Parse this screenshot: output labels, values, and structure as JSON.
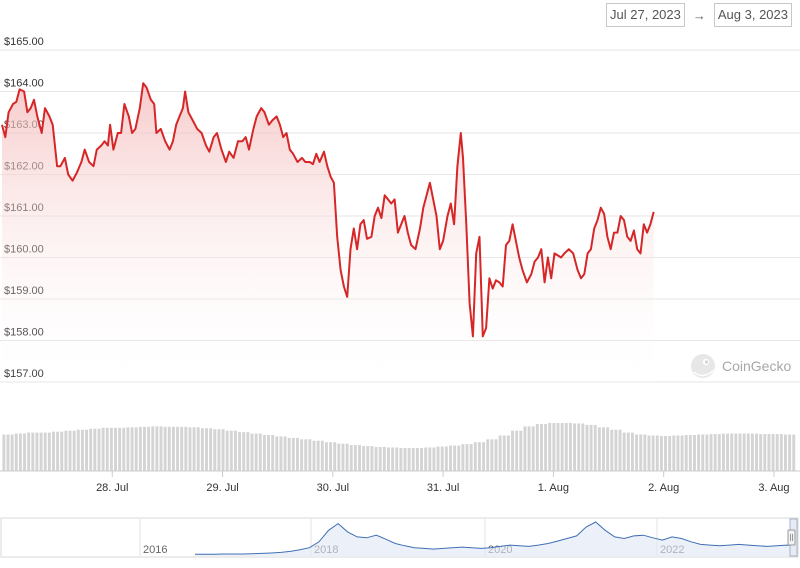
{
  "range": {
    "from": "Jul 27, 2023",
    "to": "Aug 3, 2023",
    "separator": "→"
  },
  "watermark": {
    "text": "CoinGecko",
    "icon": "gecko-logo-icon"
  },
  "colors": {
    "line": "#d62728",
    "fill": "#f6c6c6",
    "volume": "#d4d4d4",
    "nav_line": "#3f6fb5",
    "grid": "#e6e6e6"
  },
  "chart_data": {
    "type": "line",
    "title": "",
    "xlabel": "",
    "ylabel": "",
    "ylim": [
      157,
      165
    ],
    "y_ticks": [
      "$157.00",
      "$158.00",
      "$159.00",
      "$160.00",
      "$161.00",
      "$162.00",
      "$163.00",
      "$164.00",
      "$165.00"
    ],
    "x_ticks": [
      "28. Jul",
      "29. Jul",
      "30. Jul",
      "31. Jul",
      "1. Aug",
      "2. Aug",
      "3. Aug"
    ],
    "x_range_days": [
      0,
      7.2
    ],
    "grid": true,
    "series": [
      {
        "values": [
          [
            0.0,
            163.2
          ],
          [
            0.03,
            162.9
          ],
          [
            0.06,
            163.5
          ],
          [
            0.1,
            163.7
          ],
          [
            0.13,
            163.75
          ],
          [
            0.16,
            164.05
          ],
          [
            0.2,
            164.0
          ],
          [
            0.23,
            163.5
          ],
          [
            0.26,
            163.6
          ],
          [
            0.29,
            163.8
          ],
          [
            0.32,
            163.4
          ],
          [
            0.36,
            163.0
          ],
          [
            0.39,
            163.6
          ],
          [
            0.43,
            163.4
          ],
          [
            0.46,
            163.2
          ],
          [
            0.5,
            162.2
          ],
          [
            0.53,
            162.2
          ],
          [
            0.57,
            162.4
          ],
          [
            0.6,
            162.0
          ],
          [
            0.64,
            161.85
          ],
          [
            0.68,
            162.05
          ],
          [
            0.72,
            162.3
          ],
          [
            0.75,
            162.6
          ],
          [
            0.79,
            162.3
          ],
          [
            0.83,
            162.2
          ],
          [
            0.86,
            162.6
          ],
          [
            0.9,
            162.7
          ],
          [
            0.93,
            162.8
          ],
          [
            0.96,
            162.7
          ],
          [
            0.98,
            163.2
          ],
          [
            1.01,
            162.6
          ],
          [
            1.05,
            163.0
          ],
          [
            1.08,
            163.0
          ],
          [
            1.11,
            163.7
          ],
          [
            1.15,
            163.4
          ],
          [
            1.18,
            163.0
          ],
          [
            1.21,
            163.1
          ],
          [
            1.25,
            163.6
          ],
          [
            1.28,
            164.2
          ],
          [
            1.31,
            164.1
          ],
          [
            1.35,
            163.8
          ],
          [
            1.38,
            163.7
          ],
          [
            1.4,
            163.0
          ],
          [
            1.44,
            163.1
          ],
          [
            1.48,
            162.8
          ],
          [
            1.52,
            162.6
          ],
          [
            1.55,
            162.8
          ],
          [
            1.58,
            163.2
          ],
          [
            1.61,
            163.4
          ],
          [
            1.64,
            163.6
          ],
          [
            1.66,
            164.0
          ],
          [
            1.69,
            163.5
          ],
          [
            1.73,
            163.3
          ],
          [
            1.77,
            163.1
          ],
          [
            1.81,
            163.0
          ],
          [
            1.85,
            162.7
          ],
          [
            1.88,
            162.55
          ],
          [
            1.92,
            162.9
          ],
          [
            1.95,
            163.0
          ],
          [
            1.99,
            162.6
          ],
          [
            2.03,
            162.3
          ],
          [
            2.06,
            162.55
          ],
          [
            2.1,
            162.4
          ],
          [
            2.14,
            162.8
          ],
          [
            2.18,
            162.8
          ],
          [
            2.21,
            162.9
          ],
          [
            2.24,
            162.6
          ],
          [
            2.28,
            163.1
          ],
          [
            2.31,
            163.4
          ],
          [
            2.35,
            163.6
          ],
          [
            2.38,
            163.5
          ],
          [
            2.42,
            163.2
          ],
          [
            2.45,
            163.3
          ],
          [
            2.49,
            163.4
          ],
          [
            2.52,
            163.2
          ],
          [
            2.55,
            162.9
          ],
          [
            2.58,
            163.0
          ],
          [
            2.61,
            162.6
          ],
          [
            2.64,
            162.5
          ],
          [
            2.68,
            162.3
          ],
          [
            2.72,
            162.4
          ],
          [
            2.75,
            162.3
          ],
          [
            2.79,
            162.3
          ],
          [
            2.82,
            162.25
          ],
          [
            2.85,
            162.5
          ],
          [
            2.88,
            162.3
          ],
          [
            2.92,
            162.55
          ],
          [
            2.95,
            162.2
          ],
          [
            2.98,
            161.95
          ],
          [
            3.01,
            161.8
          ],
          [
            3.04,
            160.5
          ],
          [
            3.07,
            159.7
          ],
          [
            3.1,
            159.3
          ],
          [
            3.13,
            159.05
          ],
          [
            3.16,
            160.2
          ],
          [
            3.19,
            160.7
          ],
          [
            3.22,
            160.2
          ],
          [
            3.25,
            160.8
          ],
          [
            3.28,
            160.9
          ],
          [
            3.31,
            160.45
          ],
          [
            3.35,
            160.5
          ],
          [
            3.38,
            161.0
          ],
          [
            3.41,
            161.2
          ],
          [
            3.44,
            160.95
          ],
          [
            3.47,
            161.5
          ],
          [
            3.5,
            161.4
          ],
          [
            3.53,
            161.3
          ],
          [
            3.56,
            161.4
          ],
          [
            3.59,
            160.6
          ],
          [
            3.62,
            160.8
          ],
          [
            3.65,
            161.0
          ],
          [
            3.68,
            160.6
          ],
          [
            3.71,
            160.3
          ],
          [
            3.75,
            160.2
          ],
          [
            3.79,
            160.7
          ],
          [
            3.82,
            161.2
          ],
          [
            3.85,
            161.5
          ],
          [
            3.88,
            161.8
          ],
          [
            3.91,
            161.4
          ],
          [
            3.94,
            161.0
          ],
          [
            3.97,
            160.2
          ],
          [
            4.0,
            160.4
          ],
          [
            4.04,
            161.0
          ],
          [
            4.07,
            161.3
          ],
          [
            4.1,
            160.8
          ],
          [
            4.13,
            162.2
          ],
          [
            4.16,
            163.0
          ],
          [
            4.18,
            162.4
          ],
          [
            4.21,
            160.8
          ],
          [
            4.24,
            158.9
          ],
          [
            4.27,
            158.1
          ],
          [
            4.3,
            160.1
          ],
          [
            4.33,
            160.5
          ],
          [
            4.36,
            158.1
          ],
          [
            4.39,
            158.3
          ],
          [
            4.42,
            159.5
          ],
          [
            4.45,
            159.25
          ],
          [
            4.48,
            159.45
          ],
          [
            4.51,
            159.4
          ],
          [
            4.54,
            159.3
          ],
          [
            4.57,
            160.3
          ],
          [
            4.6,
            160.4
          ],
          [
            4.63,
            160.8
          ],
          [
            4.66,
            160.4
          ],
          [
            4.69,
            160.0
          ],
          [
            4.72,
            159.7
          ],
          [
            4.76,
            159.4
          ],
          [
            4.8,
            159.6
          ],
          [
            4.83,
            159.9
          ],
          [
            4.86,
            160.0
          ],
          [
            4.89,
            160.2
          ],
          [
            4.92,
            159.4
          ],
          [
            4.95,
            160.0
          ],
          [
            4.98,
            159.5
          ],
          [
            5.01,
            160.1
          ],
          [
            5.04,
            160.05
          ],
          [
            5.07,
            160.0
          ],
          [
            5.1,
            160.1
          ],
          [
            5.14,
            160.2
          ],
          [
            5.18,
            160.1
          ],
          [
            5.22,
            159.7
          ],
          [
            5.25,
            159.5
          ],
          [
            5.28,
            159.6
          ],
          [
            5.31,
            160.1
          ],
          [
            5.34,
            160.2
          ],
          [
            5.37,
            160.7
          ],
          [
            5.4,
            160.9
          ],
          [
            5.43,
            161.2
          ],
          [
            5.46,
            161.05
          ],
          [
            5.49,
            160.5
          ],
          [
            5.52,
            160.2
          ],
          [
            5.55,
            160.6
          ],
          [
            5.58,
            160.6
          ],
          [
            5.61,
            161.0
          ],
          [
            5.64,
            160.9
          ],
          [
            5.67,
            160.5
          ],
          [
            5.7,
            160.4
          ],
          [
            5.73,
            160.65
          ],
          [
            5.76,
            160.2
          ],
          [
            5.79,
            160.1
          ],
          [
            5.82,
            160.8
          ],
          [
            5.85,
            160.6
          ],
          [
            5.88,
            160.8
          ],
          [
            5.91,
            161.1
          ]
        ]
      }
    ],
    "volume": {
      "type": "bar",
      "ylim": [
        0,
        1
      ],
      "values": [
        0.76,
        0.78,
        0.8,
        0.8,
        0.82,
        0.84,
        0.86,
        0.88,
        0.9,
        0.9,
        0.91,
        0.92,
        0.93,
        0.92,
        0.92,
        0.91,
        0.89,
        0.87,
        0.84,
        0.81,
        0.78,
        0.75,
        0.72,
        0.69,
        0.66,
        0.63,
        0.6,
        0.57,
        0.54,
        0.52,
        0.5,
        0.49,
        0.48,
        0.48,
        0.49,
        0.51,
        0.53,
        0.56,
        0.6,
        0.66,
        0.74,
        0.84,
        0.93,
        0.98,
        1.0,
        1.0,
        0.99,
        0.96,
        0.91,
        0.86,
        0.8,
        0.76,
        0.74,
        0.73,
        0.74,
        0.75,
        0.76,
        0.77,
        0.78,
        0.78,
        0.78,
        0.77,
        0.77,
        0.76
      ]
    },
    "navigator": {
      "type": "line",
      "x_ticks": [
        "2016",
        "2018",
        "2020",
        "2022"
      ],
      "values": [
        0.02,
        0.02,
        0.02,
        0.03,
        0.03,
        0.03,
        0.04,
        0.05,
        0.06,
        0.08,
        0.11,
        0.16,
        0.22,
        0.4,
        0.75,
        0.95,
        0.7,
        0.55,
        0.52,
        0.6,
        0.48,
        0.35,
        0.28,
        0.22,
        0.2,
        0.18,
        0.2,
        0.22,
        0.24,
        0.22,
        0.2,
        0.22,
        0.26,
        0.3,
        0.28,
        0.26,
        0.3,
        0.35,
        0.42,
        0.5,
        0.58,
        0.85,
        1.0,
        0.75,
        0.55,
        0.5,
        0.58,
        0.6,
        0.52,
        0.45,
        0.55,
        0.5,
        0.4,
        0.32,
        0.3,
        0.28,
        0.3,
        0.32,
        0.3,
        0.28,
        0.26,
        0.28,
        0.3,
        0.28
      ]
    }
  }
}
